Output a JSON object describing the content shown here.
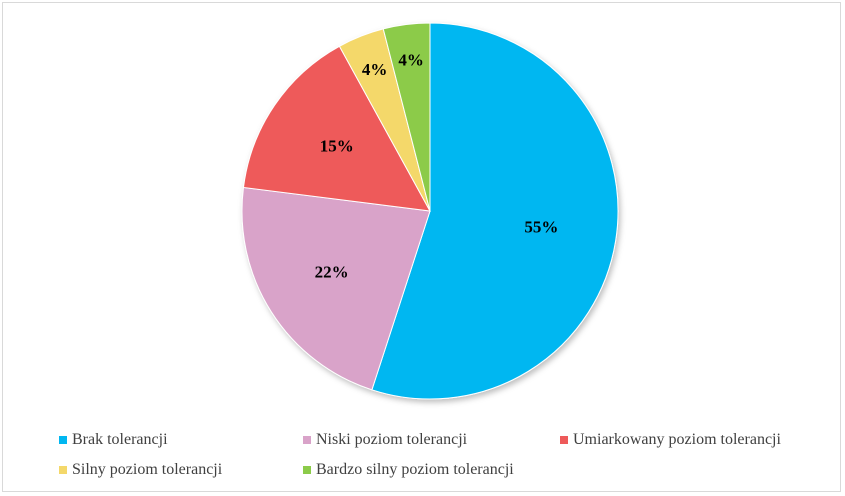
{
  "chart_data": {
    "type": "pie",
    "title": "",
    "slices": [
      {
        "label": "Brak tolerancji",
        "value": 55,
        "value_label": "55%",
        "color": "#00B7F1"
      },
      {
        "label": "Niski poziom tolerancji",
        "value": 22,
        "value_label": "22%",
        "color": "#D9A3C9"
      },
      {
        "label": "Umiarkowany poziom tolerancji",
        "value": 15,
        "value_label": "15%",
        "color": "#EE5A5A"
      },
      {
        "label": "Silny poziom tolerancji",
        "value": 4,
        "value_label": "4%",
        "color": "#F4D86A"
      },
      {
        "label": "Bardzo silny poziom tolerancji",
        "value": 4,
        "value_label": "4%",
        "color": "#8CCB4A"
      }
    ],
    "start_angle": "12 o'clock",
    "direction": "clockwise",
    "legend_position": "bottom"
  }
}
